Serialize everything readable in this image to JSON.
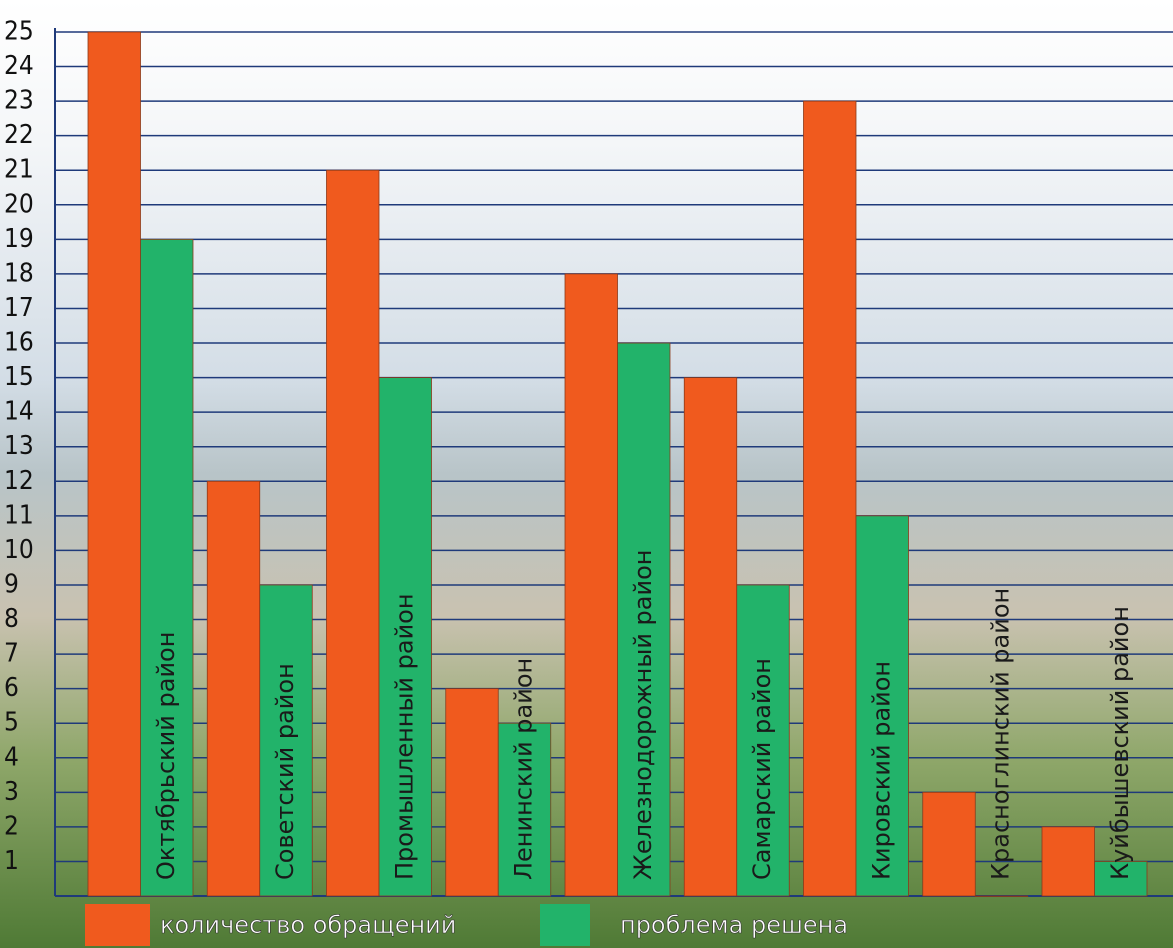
{
  "chart_data": {
    "type": "bar",
    "categories": [
      "Октябрьский район",
      "Советский район",
      "Промышленный район",
      "Ленинский район",
      "Железнодорожный район",
      "Самарский район",
      "Кировский район",
      "Красноглинский район",
      "Куйбышевский район"
    ],
    "series": [
      {
        "name": "количество обращений",
        "color": "#f05a1e",
        "values": [
          25,
          12,
          21,
          6,
          18,
          15,
          23,
          3,
          2
        ]
      },
      {
        "name": "проблема решена",
        "color": "#22b36a",
        "values": [
          19,
          9,
          15,
          5,
          16,
          9,
          11,
          0,
          1
        ]
      }
    ],
    "ylim": [
      0,
      25
    ],
    "yticks": [
      1,
      2,
      3,
      4,
      5,
      6,
      7,
      8,
      9,
      10,
      11,
      12,
      13,
      14,
      15,
      16,
      17,
      18,
      19,
      20,
      21,
      22,
      23,
      24,
      25
    ],
    "grid": true,
    "legend": "bottom"
  }
}
